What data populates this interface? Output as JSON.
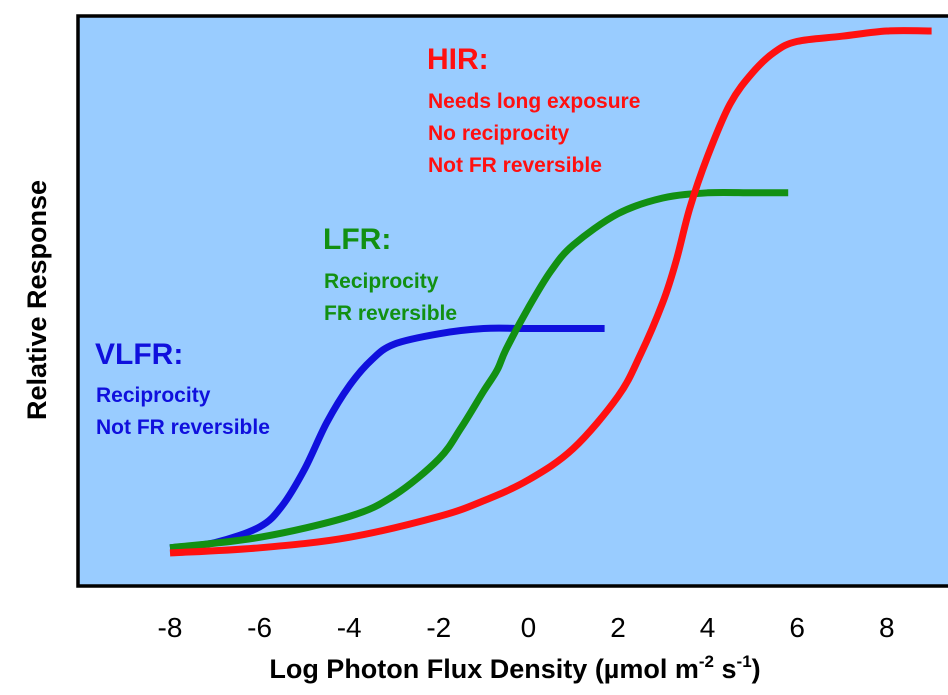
{
  "chart_data": {
    "type": "line",
    "xlabel": "Log Photon Flux Density (µmol m",
    "xlabel_sup1": "-2",
    "xlabel_mid": " s",
    "xlabel_sup2": "-1",
    "xlabel_end": ")",
    "ylabel": "Relative Response",
    "xlim": [
      -9,
      10
    ],
    "ylim": [
      0,
      1
    ],
    "xticks": [
      "-8",
      "-6",
      "-4",
      "-2",
      "0",
      "2",
      "4",
      "6",
      "8"
    ],
    "grid": false,
    "background_color": "#99ccff",
    "series": [
      {
        "name": "VLFR",
        "color": "#1010dd",
        "x": [
          -8,
          -7,
          -6,
          -5.5,
          -5,
          -4.5,
          -4,
          -3.5,
          -3,
          -2,
          -1,
          0,
          1,
          1.7
        ],
        "y": [
          0.01,
          0.02,
          0.05,
          0.09,
          0.16,
          0.25,
          0.32,
          0.37,
          0.4,
          0.42,
          0.43,
          0.43,
          0.43,
          0.43
        ]
      },
      {
        "name": "LFR",
        "color": "#129012",
        "x": [
          -8,
          -6,
          -4,
          -3,
          -2,
          -1.5,
          -1,
          -0.7,
          -0.5,
          0,
          0.5,
          1,
          2,
          3,
          4,
          5,
          5.8
        ],
        "y": [
          0.01,
          0.03,
          0.07,
          0.11,
          0.18,
          0.24,
          0.31,
          0.35,
          0.39,
          0.47,
          0.54,
          0.59,
          0.65,
          0.68,
          0.69,
          0.69,
          0.69
        ]
      },
      {
        "name": "HIR",
        "color": "#ff1010",
        "x": [
          -8,
          -6,
          -4,
          -2,
          -1,
          0,
          1,
          2,
          2.5,
          3,
          3.3,
          3.6,
          4,
          4.5,
          5,
          5.5,
          6,
          7,
          8,
          9
        ],
        "y": [
          0.0,
          0.01,
          0.03,
          0.07,
          0.1,
          0.14,
          0.2,
          0.3,
          0.38,
          0.48,
          0.56,
          0.66,
          0.76,
          0.86,
          0.92,
          0.96,
          0.98,
          0.99,
          1.0,
          1.0
        ]
      }
    ],
    "annotations": [
      {
        "id": "hir",
        "color": "#ff1010",
        "title": "HIR:",
        "lines": [
          "Needs long exposure",
          "No reciprocity",
          "Not FR reversible"
        ]
      },
      {
        "id": "lfr",
        "color": "#129012",
        "title": "LFR:",
        "lines": [
          "Reciprocity",
          "FR reversible"
        ]
      },
      {
        "id": "vlfr",
        "color": "#1010dd",
        "title": "VLFR:",
        "lines": [
          "Reciprocity",
          "Not FR reversible"
        ]
      }
    ]
  }
}
